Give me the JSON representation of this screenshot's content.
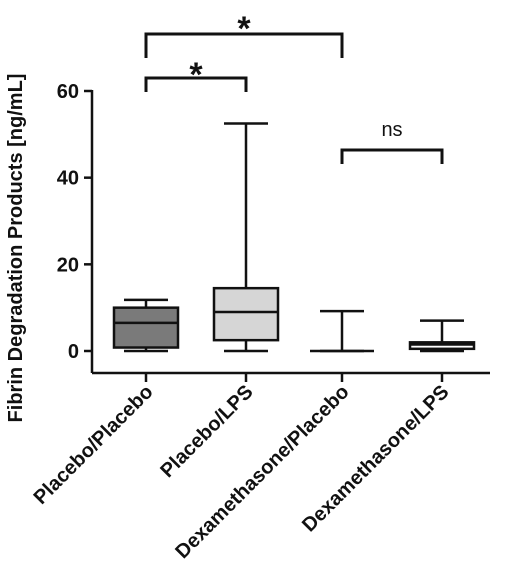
{
  "chart_data": {
    "type": "box",
    "ylabel": "Fibrin Degradation Products [ng/mL]",
    "xlabel": "",
    "ylim": [
      0,
      60
    ],
    "yticks": [
      0,
      20,
      40,
      60
    ],
    "categories": [
      "Placebo/Placebo",
      "Placebo/LPS",
      "Dexamethasone/Placebo",
      "Dexamethasone/LPS"
    ],
    "boxes": [
      {
        "min": 0,
        "q1": 0.8,
        "median": 6.5,
        "q3": 10,
        "max": 11.8,
        "fill": "#7a7a7a"
      },
      {
        "min": 0,
        "q1": 2.5,
        "median": 9,
        "q3": 14.5,
        "max": 52.5,
        "fill": "#d6d6d6"
      },
      {
        "min": 0,
        "q1": 0,
        "median": 0,
        "q3": 0,
        "max": 9.2,
        "fill": "#ffffff"
      },
      {
        "min": 0,
        "q1": 0.5,
        "median": 1.5,
        "q3": 2,
        "max": 7,
        "fill": "#ffffff"
      }
    ],
    "significance": [
      {
        "from": 0,
        "to": 2,
        "label": "*"
      },
      {
        "from": 0,
        "to": 1,
        "label": "*"
      },
      {
        "from": 2,
        "to": 3,
        "label": "ns"
      }
    ],
    "grid": false,
    "legend": "none"
  }
}
